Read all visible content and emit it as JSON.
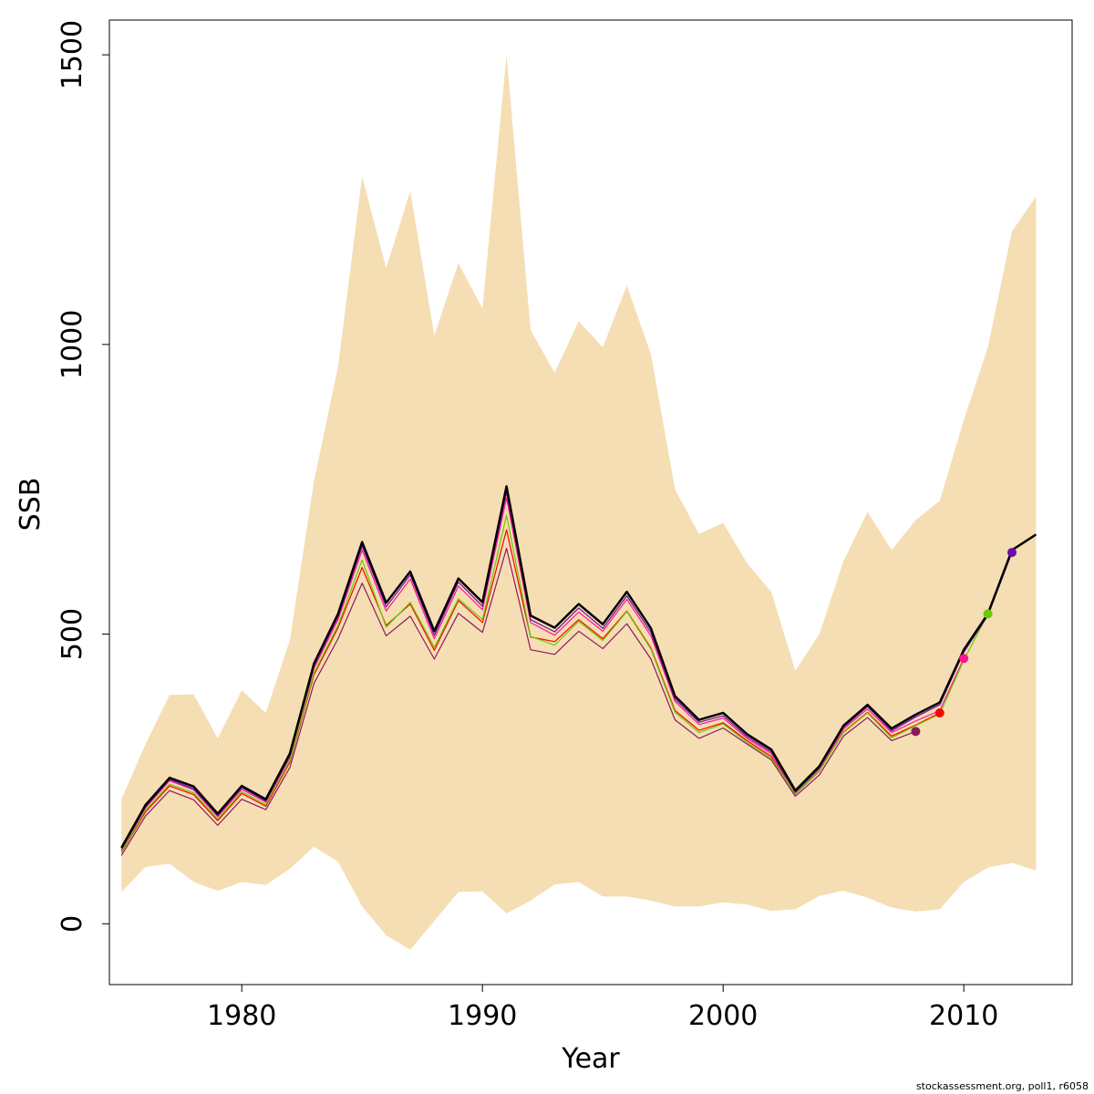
{
  "chart_data": {
    "type": "line",
    "xlabel": "Year",
    "ylabel": "SSB",
    "xlim": [
      1974.5,
      2014.5
    ],
    "ylim": [
      -105,
      1560
    ],
    "x_ticks": [
      1980,
      1990,
      2000,
      2010
    ],
    "y_ticks": [
      0,
      500,
      1000,
      1500
    ],
    "band_color": "#F5DEB3",
    "confidence_band": {
      "x": [
        1975,
        1976,
        1977,
        1978,
        1979,
        1980,
        1981,
        1982,
        1983,
        1984,
        1985,
        1986,
        1987,
        1988,
        1989,
        1990,
        1991,
        1992,
        1993,
        1994,
        1995,
        1996,
        1997,
        1998,
        1999,
        2000,
        2001,
        2002,
        2003,
        2004,
        2005,
        2006,
        2007,
        2008,
        2009,
        2010,
        2011,
        2012,
        2013
      ],
      "lower": [
        55,
        98,
        104,
        72,
        57,
        72,
        67,
        95,
        133,
        107,
        30,
        -20,
        -45,
        5,
        55,
        56,
        18,
        40,
        68,
        72,
        47,
        47,
        40,
        30,
        30,
        37,
        33,
        22,
        25,
        48,
        57,
        45,
        28,
        21,
        25,
        72,
        97,
        105,
        92
      ],
      "upper": [
        215,
        310,
        395,
        396,
        320,
        403,
        364,
        490,
        764,
        962,
        1290,
        1132,
        1265,
        1015,
        1140,
        1062,
        1500,
        1025,
        951,
        1040,
        995,
        1102,
        983,
        750,
        673,
        692,
        622,
        573,
        437,
        500,
        626,
        711,
        645,
        697,
        730,
        870,
        995,
        1195,
        1255
      ]
    },
    "series": [
      {
        "name": "2013",
        "color": "#000000",
        "width": 2.5,
        "x": [
          1975,
          1976,
          1977,
          1978,
          1979,
          1980,
          1981,
          1982,
          1983,
          1984,
          1985,
          1986,
          1987,
          1988,
          1989,
          1990,
          1991,
          1992,
          1993,
          1994,
          1995,
          1996,
          1997,
          1998,
          1999,
          2000,
          2001,
          2002,
          2003,
          2004,
          2005,
          2006,
          2007,
          2008,
          2009,
          2010,
          2011,
          2012,
          2013
        ],
        "values": [
          131,
          205,
          252,
          237,
          190,
          238,
          215,
          294,
          449,
          535,
          659,
          554,
          608,
          505,
          596,
          555,
          755,
          532,
          511,
          552,
          517,
          573,
          510,
          393,
          352,
          364,
          327,
          301,
          230,
          272,
          342,
          378,
          337,
          361,
          382,
          473,
          535,
          645,
          672
        ]
      },
      {
        "name": "2012",
        "color": "#6A0DAD",
        "width": 1.2,
        "point": true,
        "x": [
          1975,
          1976,
          1977,
          1978,
          1979,
          1980,
          1981,
          1982,
          1983,
          1984,
          1985,
          1986,
          1987,
          1988,
          1989,
          1990,
          1991,
          1992,
          1993,
          1994,
          1995,
          1996,
          1997,
          1998,
          1999,
          2000,
          2001,
          2002,
          2003,
          2004,
          2005,
          2006,
          2007,
          2008,
          2009,
          2010,
          2011,
          2012
        ],
        "values": [
          128,
          202,
          249,
          233,
          187,
          235,
          212,
          290,
          445,
          530,
          652,
          547,
          602,
          498,
          590,
          548,
          745,
          525,
          504,
          545,
          510,
          566,
          503,
          388,
          348,
          359,
          323,
          297,
          227,
          269,
          339,
          375,
          333,
          357,
          378,
          469,
          532,
          641
        ]
      },
      {
        "name": "2011",
        "color": "#66CC00",
        "width": 1.2,
        "point": true,
        "x": [
          1975,
          1976,
          1977,
          1978,
          1979,
          1980,
          1981,
          1982,
          1983,
          1984,
          1985,
          1986,
          1987,
          1988,
          1989,
          1990,
          1991,
          1992,
          1993,
          1994,
          1995,
          1996,
          1997,
          1998,
          1999,
          2000,
          2001,
          2002,
          2003,
          2004,
          2005,
          2006,
          2007,
          2008,
          2009,
          2010,
          2011
        ],
        "values": [
          124,
          196,
          241,
          226,
          181,
          228,
          206,
          282,
          433,
          515,
          628,
          512,
          555,
          477,
          561,
          525,
          705,
          496,
          481,
          522,
          489,
          539,
          474,
          365,
          330,
          345,
          313,
          286,
          225,
          265,
          330,
          364,
          321,
          342,
          362,
          455,
          535
        ]
      },
      {
        "name": "2010",
        "color": "#FF1493",
        "width": 1.2,
        "point": true,
        "x": [
          1975,
          1976,
          1977,
          1978,
          1979,
          1980,
          1981,
          1982,
          1983,
          1984,
          1985,
          1986,
          1987,
          1988,
          1989,
          1990,
          1991,
          1992,
          1993,
          1994,
          1995,
          1996,
          1997,
          1998,
          1999,
          2000,
          2001,
          2002,
          2003,
          2004,
          2005,
          2006,
          2007,
          2008,
          2009,
          2010
        ],
        "values": [
          126,
          200,
          247,
          231,
          185,
          232,
          210,
          287,
          441,
          525,
          645,
          540,
          595,
          492,
          583,
          542,
          735,
          520,
          498,
          538,
          505,
          560,
          497,
          384,
          344,
          355,
          320,
          294,
          225,
          266,
          336,
          371,
          330,
          350,
          368,
          458
        ]
      },
      {
        "name": "2009",
        "color": "#FF0000",
        "width": 1.2,
        "point": true,
        "x": [
          1975,
          1976,
          1977,
          1978,
          1979,
          1980,
          1981,
          1982,
          1983,
          1984,
          1985,
          1986,
          1987,
          1988,
          1989,
          1990,
          1991,
          1992,
          1993,
          1994,
          1995,
          1996,
          1997,
          1998,
          1999,
          2000,
          2001,
          2002,
          2003,
          2004,
          2005,
          2006,
          2007,
          2008,
          2009
        ],
        "values": [
          123,
          193,
          238,
          223,
          178,
          225,
          203,
          279,
          430,
          511,
          615,
          515,
          552,
          472,
          558,
          520,
          680,
          495,
          487,
          525,
          492,
          540,
          476,
          368,
          334,
          347,
          316,
          289,
          224,
          264,
          331,
          365,
          324,
          343,
          364
        ]
      },
      {
        "name": "2008",
        "color": "#8B1A5C",
        "width": 1.2,
        "point": true,
        "x": [
          1975,
          1976,
          1977,
          1978,
          1979,
          1980,
          1981,
          1982,
          1983,
          1984,
          1985,
          1986,
          1987,
          1988,
          1989,
          1990,
          1991,
          1992,
          1993,
          1994,
          1995,
          1996,
          1997,
          1998,
          1999,
          2000,
          2001,
          2002,
          2003,
          2004,
          2005,
          2006,
          2007,
          2008
        ],
        "values": [
          118,
          186,
          230,
          214,
          170,
          215,
          197,
          270,
          415,
          492,
          588,
          497,
          531,
          457,
          536,
          503,
          648,
          473,
          465,
          505,
          475,
          518,
          457,
          352,
          320,
          338,
          310,
          283,
          220,
          257,
          324,
          356,
          316,
          332
        ]
      }
    ]
  },
  "footer": "stockassessment.org, poll1, r6058"
}
